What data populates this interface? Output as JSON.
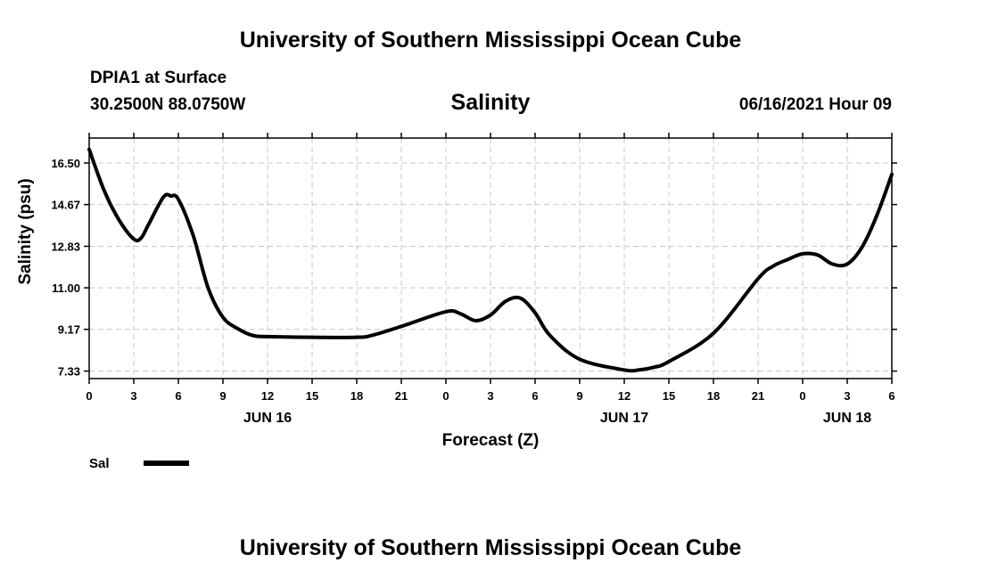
{
  "header": {
    "title": "University of Southern Mississippi Ocean Cube",
    "station": "DPIA1 at Surface",
    "coords": "30.2500N  88.0750W",
    "variable": "Salinity",
    "timestamp": "06/16/2021 Hour 09"
  },
  "footer": {
    "title": "University of Southern Mississippi Ocean Cube"
  },
  "legend": {
    "label": "Sal"
  },
  "chart_data": {
    "type": "line",
    "xlabel": "Forecast (Z)",
    "ylabel": "Salinity (psu)",
    "x_tick_labels": [
      "0",
      "3",
      "6",
      "9",
      "12",
      "15",
      "18",
      "21",
      "0",
      "3",
      "6",
      "9",
      "12",
      "15",
      "18",
      "21",
      "0",
      "3",
      "6"
    ],
    "date_labels": [
      {
        "label": "JUN 16",
        "at_hour": 12
      },
      {
        "label": "JUN 17",
        "at_hour": 36
      },
      {
        "label": "JUN 18",
        "at_hour": 51
      }
    ],
    "xlim": [
      0,
      54
    ],
    "yticks": [
      7.33,
      9.17,
      11.0,
      12.83,
      14.67,
      16.5
    ],
    "ytick_labels": [
      "7.33",
      "9.17",
      "11.00",
      "12.83",
      "14.67",
      "16.50"
    ],
    "ylim": [
      7.0,
      17.6
    ],
    "grid": true,
    "line_color": "#000000",
    "series": [
      {
        "name": "Sal",
        "x": [
          0,
          1,
          2,
          3,
          3.5,
          4,
          5,
          5.5,
          6,
          7,
          8,
          9,
          10,
          11,
          12,
          15,
          18,
          19,
          21,
          24,
          25,
          26,
          27,
          28,
          29,
          30,
          31,
          33,
          36,
          37,
          38,
          39,
          42,
          45,
          46,
          47,
          48,
          49,
          50,
          51,
          52,
          53,
          54
        ],
        "y": [
          17.1,
          15.3,
          14.0,
          13.15,
          13.2,
          13.8,
          15.0,
          15.05,
          14.9,
          13.3,
          11.0,
          9.7,
          9.2,
          8.9,
          8.85,
          8.82,
          8.82,
          8.9,
          9.3,
          9.95,
          9.85,
          9.55,
          9.8,
          10.4,
          10.55,
          9.9,
          8.9,
          7.85,
          7.38,
          7.38,
          7.5,
          7.75,
          9.0,
          11.4,
          11.95,
          12.25,
          12.5,
          12.45,
          12.05,
          12.05,
          12.8,
          14.2,
          16.0
        ]
      }
    ]
  }
}
